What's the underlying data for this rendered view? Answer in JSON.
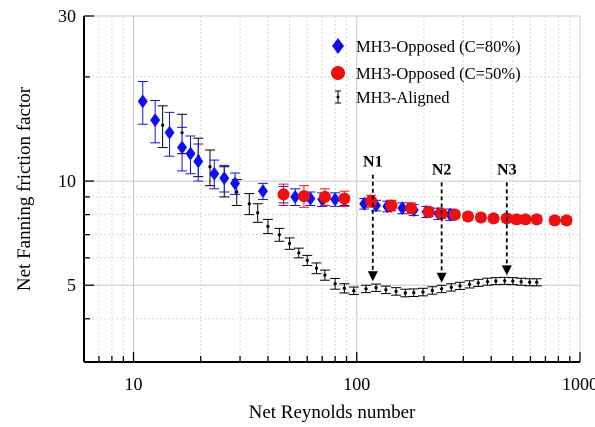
{
  "chart_data": {
    "type": "scatter",
    "xlabel": "Net Reynolds number",
    "ylabel": "Net Fanning friction factor",
    "x_scale": "log",
    "y_scale": "log",
    "xlim": [
      6,
      1000
    ],
    "ylim": [
      3,
      30
    ],
    "x_ticks": [
      {
        "value": 10,
        "label": "10"
      },
      {
        "value": 100,
        "label": "100"
      },
      {
        "value": 1000,
        "label": "1000"
      }
    ],
    "y_ticks": [
      {
        "value": 5,
        "label": "5"
      },
      {
        "value": 10,
        "label": "10"
      },
      {
        "value": 30,
        "label": "30"
      }
    ],
    "grid": true,
    "legend_position": "top-right",
    "series": [
      {
        "name": "MH3-Opposed (C=80%)",
        "marker": "diamond",
        "color": "#1010ee",
        "points": [
          {
            "x": 11,
            "y": 17.0,
            "err": 2.4
          },
          {
            "x": 12.5,
            "y": 15.0,
            "err": 2.1
          },
          {
            "x": 14.5,
            "y": 13.8,
            "err": 2.0
          },
          {
            "x": 16.5,
            "y": 12.5,
            "err": 1.8
          },
          {
            "x": 18,
            "y": 12.0,
            "err": 1.5
          },
          {
            "x": 19.5,
            "y": 11.4,
            "err": 1.4
          },
          {
            "x": 23,
            "y": 10.5,
            "err": 1.0
          },
          {
            "x": 25.5,
            "y": 10.2,
            "err": 0.9
          },
          {
            "x": 28.5,
            "y": 9.85,
            "err": 0.7
          },
          {
            "x": 38,
            "y": 9.35,
            "err": 0.5
          },
          {
            "x": 47,
            "y": 9.15,
            "err": 0.5
          },
          {
            "x": 53,
            "y": 9.0,
            "err": 0.5
          },
          {
            "x": 62,
            "y": 8.9,
            "err": 0.4
          },
          {
            "x": 70,
            "y": 8.85,
            "err": 0.4
          },
          {
            "x": 80,
            "y": 8.85,
            "err": 0.4
          },
          {
            "x": 88,
            "y": 8.8,
            "err": 0.3
          },
          {
            "x": 108,
            "y": 8.6,
            "err": 0.3
          },
          {
            "x": 122,
            "y": 8.5,
            "err": 0.3
          },
          {
            "x": 137,
            "y": 8.45,
            "err": 0.3
          },
          {
            "x": 160,
            "y": 8.35,
            "err": 0.3
          },
          {
            "x": 180,
            "y": 8.25,
            "err": 0.3
          },
          {
            "x": 205,
            "y": 8.15,
            "err": 0.3
          },
          {
            "x": 232,
            "y": 8.05,
            "err": 0.3
          },
          {
            "x": 262,
            "y": 8.0,
            "err": 0.3
          }
        ]
      },
      {
        "name": "MH3-Opposed (C=50%)",
        "marker": "circle",
        "color": "#ee1010",
        "points": [
          {
            "x": 47,
            "y": 9.15,
            "err": 0.65
          },
          {
            "x": 58,
            "y": 9.05,
            "err": 0.65
          },
          {
            "x": 72,
            "y": 9.0,
            "err": 0.5
          },
          {
            "x": 88,
            "y": 8.9,
            "err": 0.45
          },
          {
            "x": 116,
            "y": 8.75,
            "err": 0.35
          },
          {
            "x": 143,
            "y": 8.5,
            "err": 0.3
          },
          {
            "x": 175,
            "y": 8.35,
            "err": 0.3
          },
          {
            "x": 210,
            "y": 8.15,
            "err": 0.25
          },
          {
            "x": 240,
            "y": 8.05,
            "err": 0.25
          },
          {
            "x": 275,
            "y": 8.0,
            "err": 0.2
          },
          {
            "x": 315,
            "y": 7.9,
            "err": 0.2
          },
          {
            "x": 360,
            "y": 7.85,
            "err": 0.2
          },
          {
            "x": 410,
            "y": 7.8,
            "err": 0.2
          },
          {
            "x": 470,
            "y": 7.8,
            "err": 0.2
          },
          {
            "x": 520,
            "y": 7.75,
            "err": 0.2
          },
          {
            "x": 570,
            "y": 7.75,
            "err": 0.2
          },
          {
            "x": 640,
            "y": 7.75,
            "err": 0.2
          },
          {
            "x": 770,
            "y": 7.7,
            "err": 0.2
          },
          {
            "x": 870,
            "y": 7.7,
            "err": 0.2
          }
        ]
      },
      {
        "name": "MH3-Aligned",
        "marker": "dot",
        "color": "#000000",
        "points": [
          {
            "x": 13.5,
            "y": 14.5,
            "err": 2.0
          },
          {
            "x": 16.5,
            "y": 13.8,
            "err": 1.8
          },
          {
            "x": 19.5,
            "y": 11.8,
            "err": 1.5
          },
          {
            "x": 22,
            "y": 11.0,
            "err": 1.3
          },
          {
            "x": 25.5,
            "y": 10.0,
            "err": 1.0
          },
          {
            "x": 29,
            "y": 9.3,
            "err": 0.8
          },
          {
            "x": 33,
            "y": 8.6,
            "err": 0.6
          },
          {
            "x": 36,
            "y": 8.1,
            "err": 0.5
          },
          {
            "x": 40,
            "y": 7.4,
            "err": 0.35
          },
          {
            "x": 45,
            "y": 7.0,
            "err": 0.3
          },
          {
            "x": 50,
            "y": 6.6,
            "err": 0.25
          },
          {
            "x": 55,
            "y": 6.2,
            "err": 0.2
          },
          {
            "x": 60,
            "y": 5.9,
            "err": 0.2
          },
          {
            "x": 66,
            "y": 5.6,
            "err": 0.2
          },
          {
            "x": 72,
            "y": 5.35,
            "err": 0.18
          },
          {
            "x": 80,
            "y": 5.05,
            "err": 0.18
          },
          {
            "x": 88,
            "y": 4.9,
            "err": 0.15
          },
          {
            "x": 97,
            "y": 4.82,
            "err": 0.12
          },
          {
            "x": 110,
            "y": 4.88,
            "err": 0.12
          },
          {
            "x": 122,
            "y": 4.92,
            "err": 0.12
          },
          {
            "x": 135,
            "y": 4.85,
            "err": 0.12
          },
          {
            "x": 150,
            "y": 4.8,
            "err": 0.12
          },
          {
            "x": 165,
            "y": 4.75,
            "err": 0.12
          },
          {
            "x": 180,
            "y": 4.76,
            "err": 0.12
          },
          {
            "x": 198,
            "y": 4.78,
            "err": 0.12
          },
          {
            "x": 218,
            "y": 4.83,
            "err": 0.12
          },
          {
            "x": 240,
            "y": 4.88,
            "err": 0.12
          },
          {
            "x": 265,
            "y": 4.93,
            "err": 0.12
          },
          {
            "x": 290,
            "y": 4.98,
            "err": 0.12
          },
          {
            "x": 320,
            "y": 5.03,
            "err": 0.12
          },
          {
            "x": 350,
            "y": 5.08,
            "err": 0.12
          },
          {
            "x": 385,
            "y": 5.12,
            "err": 0.12
          },
          {
            "x": 420,
            "y": 5.14,
            "err": 0.12
          },
          {
            "x": 460,
            "y": 5.15,
            "err": 0.12
          },
          {
            "x": 500,
            "y": 5.14,
            "err": 0.12
          },
          {
            "x": 545,
            "y": 5.12,
            "err": 0.12
          },
          {
            "x": 595,
            "y": 5.1,
            "err": 0.12
          },
          {
            "x": 640,
            "y": 5.1,
            "err": 0.12
          }
        ]
      }
    ],
    "annotations": [
      {
        "label": "N1",
        "x": 118,
        "y_from": 8.1,
        "y_to": 5.0
      },
      {
        "label": "N2",
        "x": 240,
        "y_from": 7.7,
        "y_to": 4.95
      },
      {
        "label": "N3",
        "x": 470,
        "y_from": 7.7,
        "y_to": 5.2
      }
    ]
  }
}
